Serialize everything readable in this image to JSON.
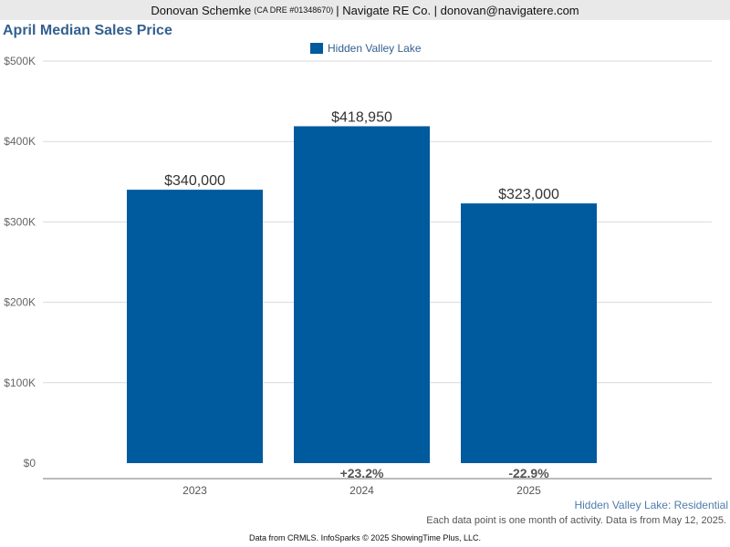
{
  "header": {
    "name": "Donovan Schemke",
    "license": "(CA DRE #01348670)",
    "company": "| Navigate RE Co. | donovan@navigatere.com"
  },
  "colors": {
    "bar": "#005a9e",
    "title": "#34608f"
  },
  "chart_data": {
    "type": "bar",
    "title": "April Median Sales Price",
    "categories": [
      "2023",
      "2024",
      "2025"
    ],
    "series": [
      {
        "name": "Hidden Valley Lake",
        "values": [
          340000,
          418950,
          323000
        ]
      }
    ],
    "value_labels": [
      "$340,000",
      "$418,950",
      "$323,000"
    ],
    "change_labels": [
      "",
      "+23.2%",
      "-22.9%"
    ],
    "yticks": [
      0,
      100000,
      200000,
      300000,
      400000,
      500000
    ],
    "ytick_labels": [
      "$0",
      "$100K",
      "$200K",
      "$300K",
      "$400K",
      "$500K"
    ],
    "ylim": [
      0,
      500000
    ],
    "grid": true,
    "legend_position": "top-center"
  },
  "series_label": "Hidden Valley Lake: Residential",
  "note": "Each data point is one month of activity. Data is from May 12, 2025.",
  "footer": "Data from CRMLS. InfoSparks © 2025 ShowingTime Plus, LLC."
}
